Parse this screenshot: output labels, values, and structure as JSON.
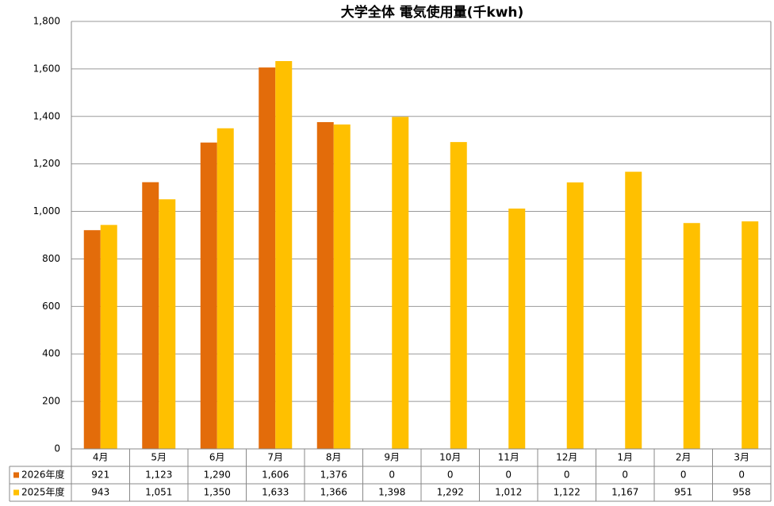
{
  "chart_data": {
    "type": "bar",
    "title": "大学全体 電気使用量(千kwh)",
    "categories": [
      "4月",
      "5月",
      "6月",
      "7月",
      "8月",
      "9月",
      "10月",
      "11月",
      "12月",
      "1月",
      "2月",
      "3月"
    ],
    "series": [
      {
        "name": "2026年度",
        "color": "#e36c0a",
        "values": [
          921,
          1123,
          1290,
          1606,
          1376,
          0,
          0,
          0,
          0,
          0,
          0,
          0
        ],
        "value_labels": [
          "921",
          "1,123",
          "1,290",
          "1,606",
          "1,376",
          "0",
          "0",
          "0",
          "0",
          "0",
          "0",
          "0"
        ]
      },
      {
        "name": "2025年度",
        "color": "#ffc000",
        "values": [
          943,
          1051,
          1350,
          1633,
          1366,
          1398,
          1292,
          1012,
          1122,
          1167,
          951,
          958
        ],
        "value_labels": [
          "943",
          "1,051",
          "1,350",
          "1,633",
          "1,366",
          "1,398",
          "1,292",
          "1,012",
          "1,122",
          "1,167",
          "951",
          "958"
        ]
      }
    ],
    "ylim": [
      0,
      1800
    ],
    "yticks": [
      0,
      200,
      400,
      600,
      800,
      {
        "value": 1000,
        "label": "1,000"
      },
      {
        "value": 1200,
        "label": "1,200"
      },
      {
        "value": 1400,
        "label": "1,400"
      },
      {
        "value": 1600,
        "label": "1,600"
      },
      {
        "value": 1800,
        "label": "1,800"
      }
    ],
    "grid": true
  }
}
